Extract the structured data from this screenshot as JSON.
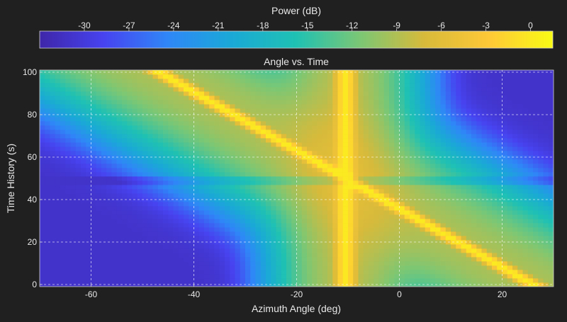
{
  "chart_data": {
    "type": "heatmap",
    "title": "Angle vs. Time",
    "xlabel": "Azimuth Angle (deg)",
    "ylabel": "Time History (s)",
    "xlim": [
      -70,
      30
    ],
    "ylim": [
      -1,
      101
    ],
    "xticks": [
      -60,
      -40,
      -20,
      0,
      20
    ],
    "yticks": [
      0,
      20,
      40,
      60,
      80,
      100
    ],
    "grid": true,
    "colorbar": {
      "label": "Power (dB)",
      "range": [
        -33,
        1.5
      ],
      "ticks": [
        -30,
        -27,
        -24,
        -21,
        -18,
        -15,
        -12,
        -9,
        -6,
        -3,
        0
      ],
      "placement": "top"
    },
    "features": {
      "moving_source": {
        "start_angle": -46,
        "start_time": 99,
        "end_angle": 26,
        "end_time": 0,
        "peak_db": 0
      },
      "stationary_source": {
        "angle": -10.5,
        "peak_db": -1
      },
      "low_power_band_time": [
        47,
        50
      ],
      "background_db": -31
    },
    "colors": {
      "background": "#202020",
      "colormap": [
        "#3e26a8",
        "#4743f0",
        "#2f87f7",
        "#1aa9d6",
        "#1fc1b3",
        "#7cc774",
        "#d8ba3a",
        "#fec837",
        "#f9fb15"
      ]
    }
  }
}
